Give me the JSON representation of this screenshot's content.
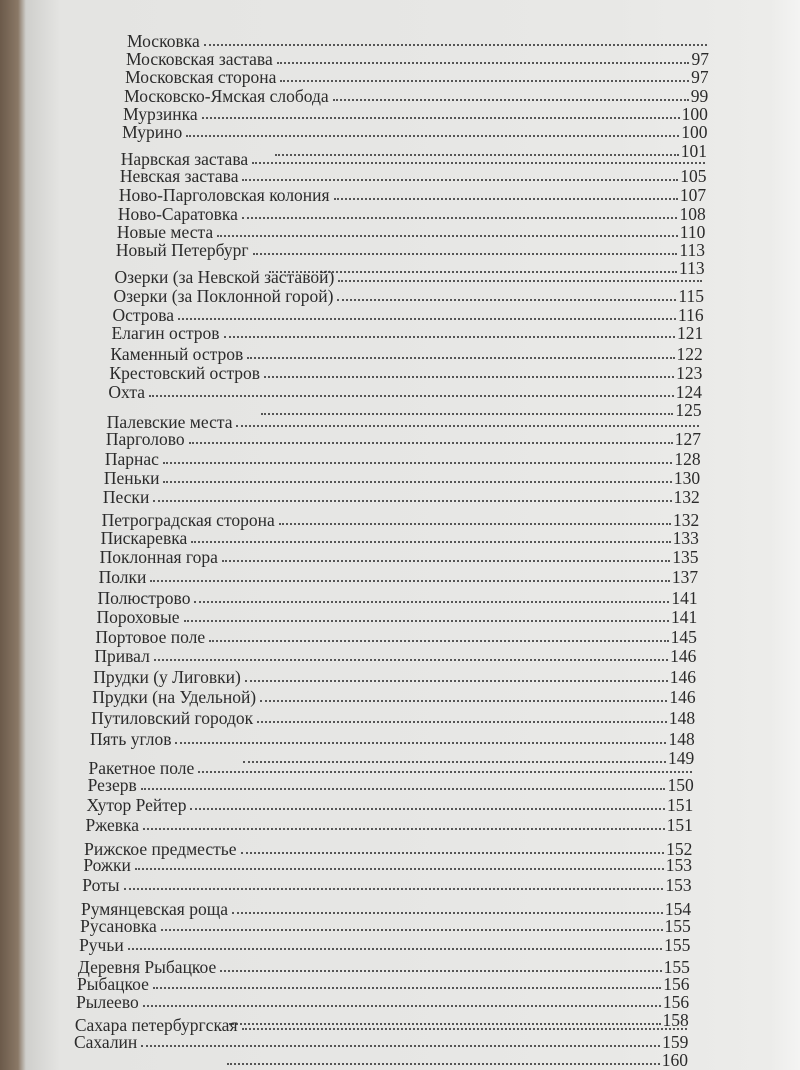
{
  "toc": [
    {
      "label": "Московка",
      "page": ""
    },
    {
      "label": "Московская застава",
      "page": "97"
    },
    {
      "label": "Московская сторона",
      "page": "97"
    },
    {
      "label": "Московско-Ямская слобода",
      "page": "99"
    },
    {
      "label": "Мурзинка",
      "page": "100"
    },
    {
      "label": "Мурино",
      "page": "100"
    },
    {
      "label": "",
      "page": "101"
    },
    {
      "label": "Нарвская застава",
      "page": ""
    },
    {
      "label": "Невская застава",
      "page": "105"
    },
    {
      "label": "Ново-Парголовская колония",
      "page": "107"
    },
    {
      "label": "Ново-Саратовка",
      "page": "108"
    },
    {
      "label": "Новые места",
      "page": "110"
    },
    {
      "label": "Новый Петербург",
      "page": "113"
    },
    {
      "label": "",
      "page": "113"
    },
    {
      "label": "Озерки (за Невской заставой)",
      "page": ""
    },
    {
      "label": "Озерки (за Поклонной горой)",
      "page": "115"
    },
    {
      "label": "Острова",
      "page": "116"
    },
    {
      "label": "Елагин остров",
      "page": "121"
    },
    {
      "label": "Каменный остров",
      "page": "122"
    },
    {
      "label": "Крестовский остров",
      "page": "123"
    },
    {
      "label": "Охта",
      "page": "124"
    },
    {
      "label": "",
      "page": "125"
    },
    {
      "label": "Палевские места",
      "page": ""
    },
    {
      "label": "Парголово",
      "page": "127"
    },
    {
      "label": "Парнас",
      "page": "128"
    },
    {
      "label": "Пеньки",
      "page": "130"
    },
    {
      "label": "Пески",
      "page": "132"
    },
    {
      "label": "Петроградская сторона",
      "page": "132"
    },
    {
      "label": "Пискаревка",
      "page": "133"
    },
    {
      "label": "Поклонная гора",
      "page": "135"
    },
    {
      "label": "Полки",
      "page": "137"
    },
    {
      "label": "Полюстрово",
      "page": "141"
    },
    {
      "label": "Пороховые",
      "page": "141"
    },
    {
      "label": "Портовое поле",
      "page": "145"
    },
    {
      "label": "Привал",
      "page": "146"
    },
    {
      "label": "Прудки (у Лиговки)",
      "page": "146"
    },
    {
      "label": "Прудки (на Удельной)",
      "page": "146"
    },
    {
      "label": "Путиловский городок",
      "page": "148"
    },
    {
      "label": "Пять углов",
      "page": "148"
    },
    {
      "label": "",
      "page": "149"
    },
    {
      "label": "Ракетное поле",
      "page": ""
    },
    {
      "label": "Резерв",
      "page": "150"
    },
    {
      "label": "Хутор Рейтер",
      "page": "151"
    },
    {
      "label": "Ржевка",
      "page": "151"
    },
    {
      "label": "Рижское предместье",
      "page": "152"
    },
    {
      "label": "Рожки",
      "page": "153"
    },
    {
      "label": "Роты",
      "page": "153"
    },
    {
      "label": "Румянцевская роща",
      "page": "154"
    },
    {
      "label": "Русановка",
      "page": "155"
    },
    {
      "label": "Ручьи",
      "page": "155"
    },
    {
      "label": "Деревня Рыбацкое",
      "page": "155"
    },
    {
      "label": "Рыбацкое",
      "page": "156"
    },
    {
      "label": "Рылеево",
      "page": "156"
    },
    {
      "label": "",
      "page": "158"
    },
    {
      "label": "Сахара петербургская",
      "page": ""
    },
    {
      "label": "Сахалин",
      "page": "159"
    },
    {
      "label": "",
      "page": "160"
    }
  ]
}
